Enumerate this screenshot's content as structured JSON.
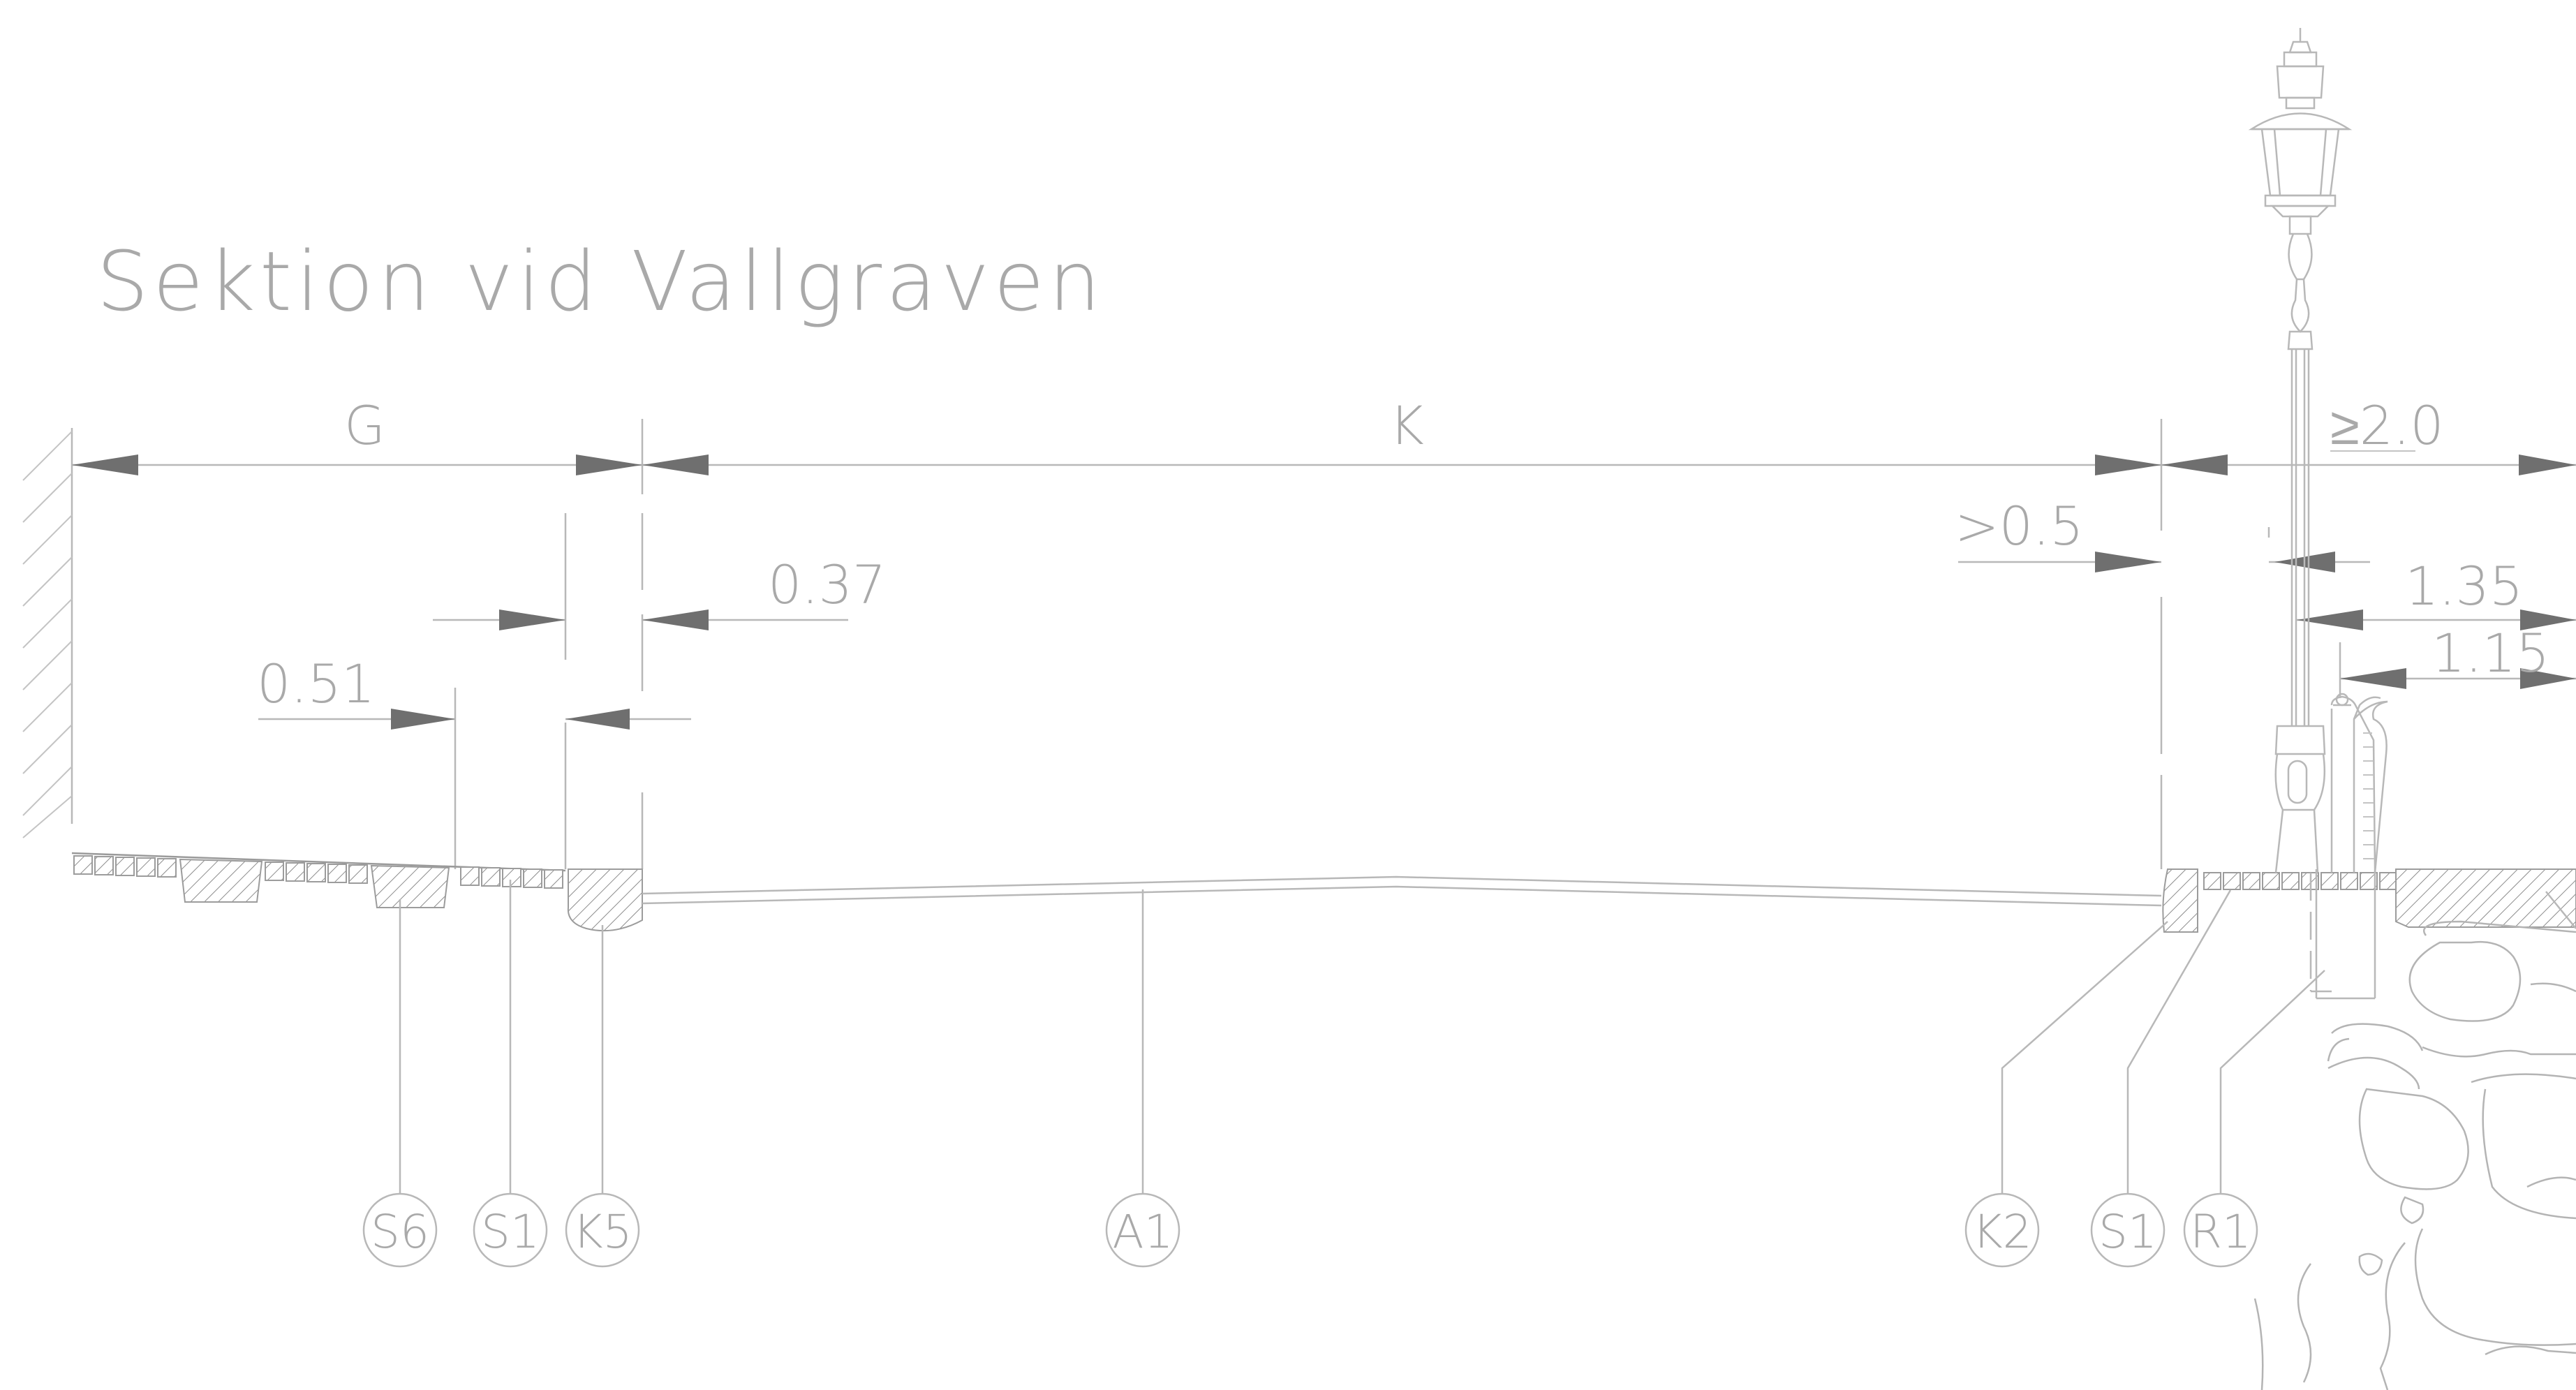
{
  "title": "Sektion vid Vallgraven",
  "dimensions": {
    "g": "G",
    "k": "K",
    "min_2_0": "≥2.0",
    "min_0_5": ">0.5",
    "d_0_37": "0.37",
    "d_0_51": "0.51",
    "d_1_35": "1.35",
    "d_1_15": "1.15"
  },
  "callouts": [
    {
      "label": "S6"
    },
    {
      "label": "S1"
    },
    {
      "label": "K5"
    },
    {
      "label": "A1"
    },
    {
      "label": "K2"
    },
    {
      "label": "S1"
    },
    {
      "label": "R1"
    }
  ],
  "colors": {
    "line": "#b8b8b8",
    "arrow": "#6f6f6f",
    "text": "#a9a9a9",
    "background": "#ffffff"
  }
}
